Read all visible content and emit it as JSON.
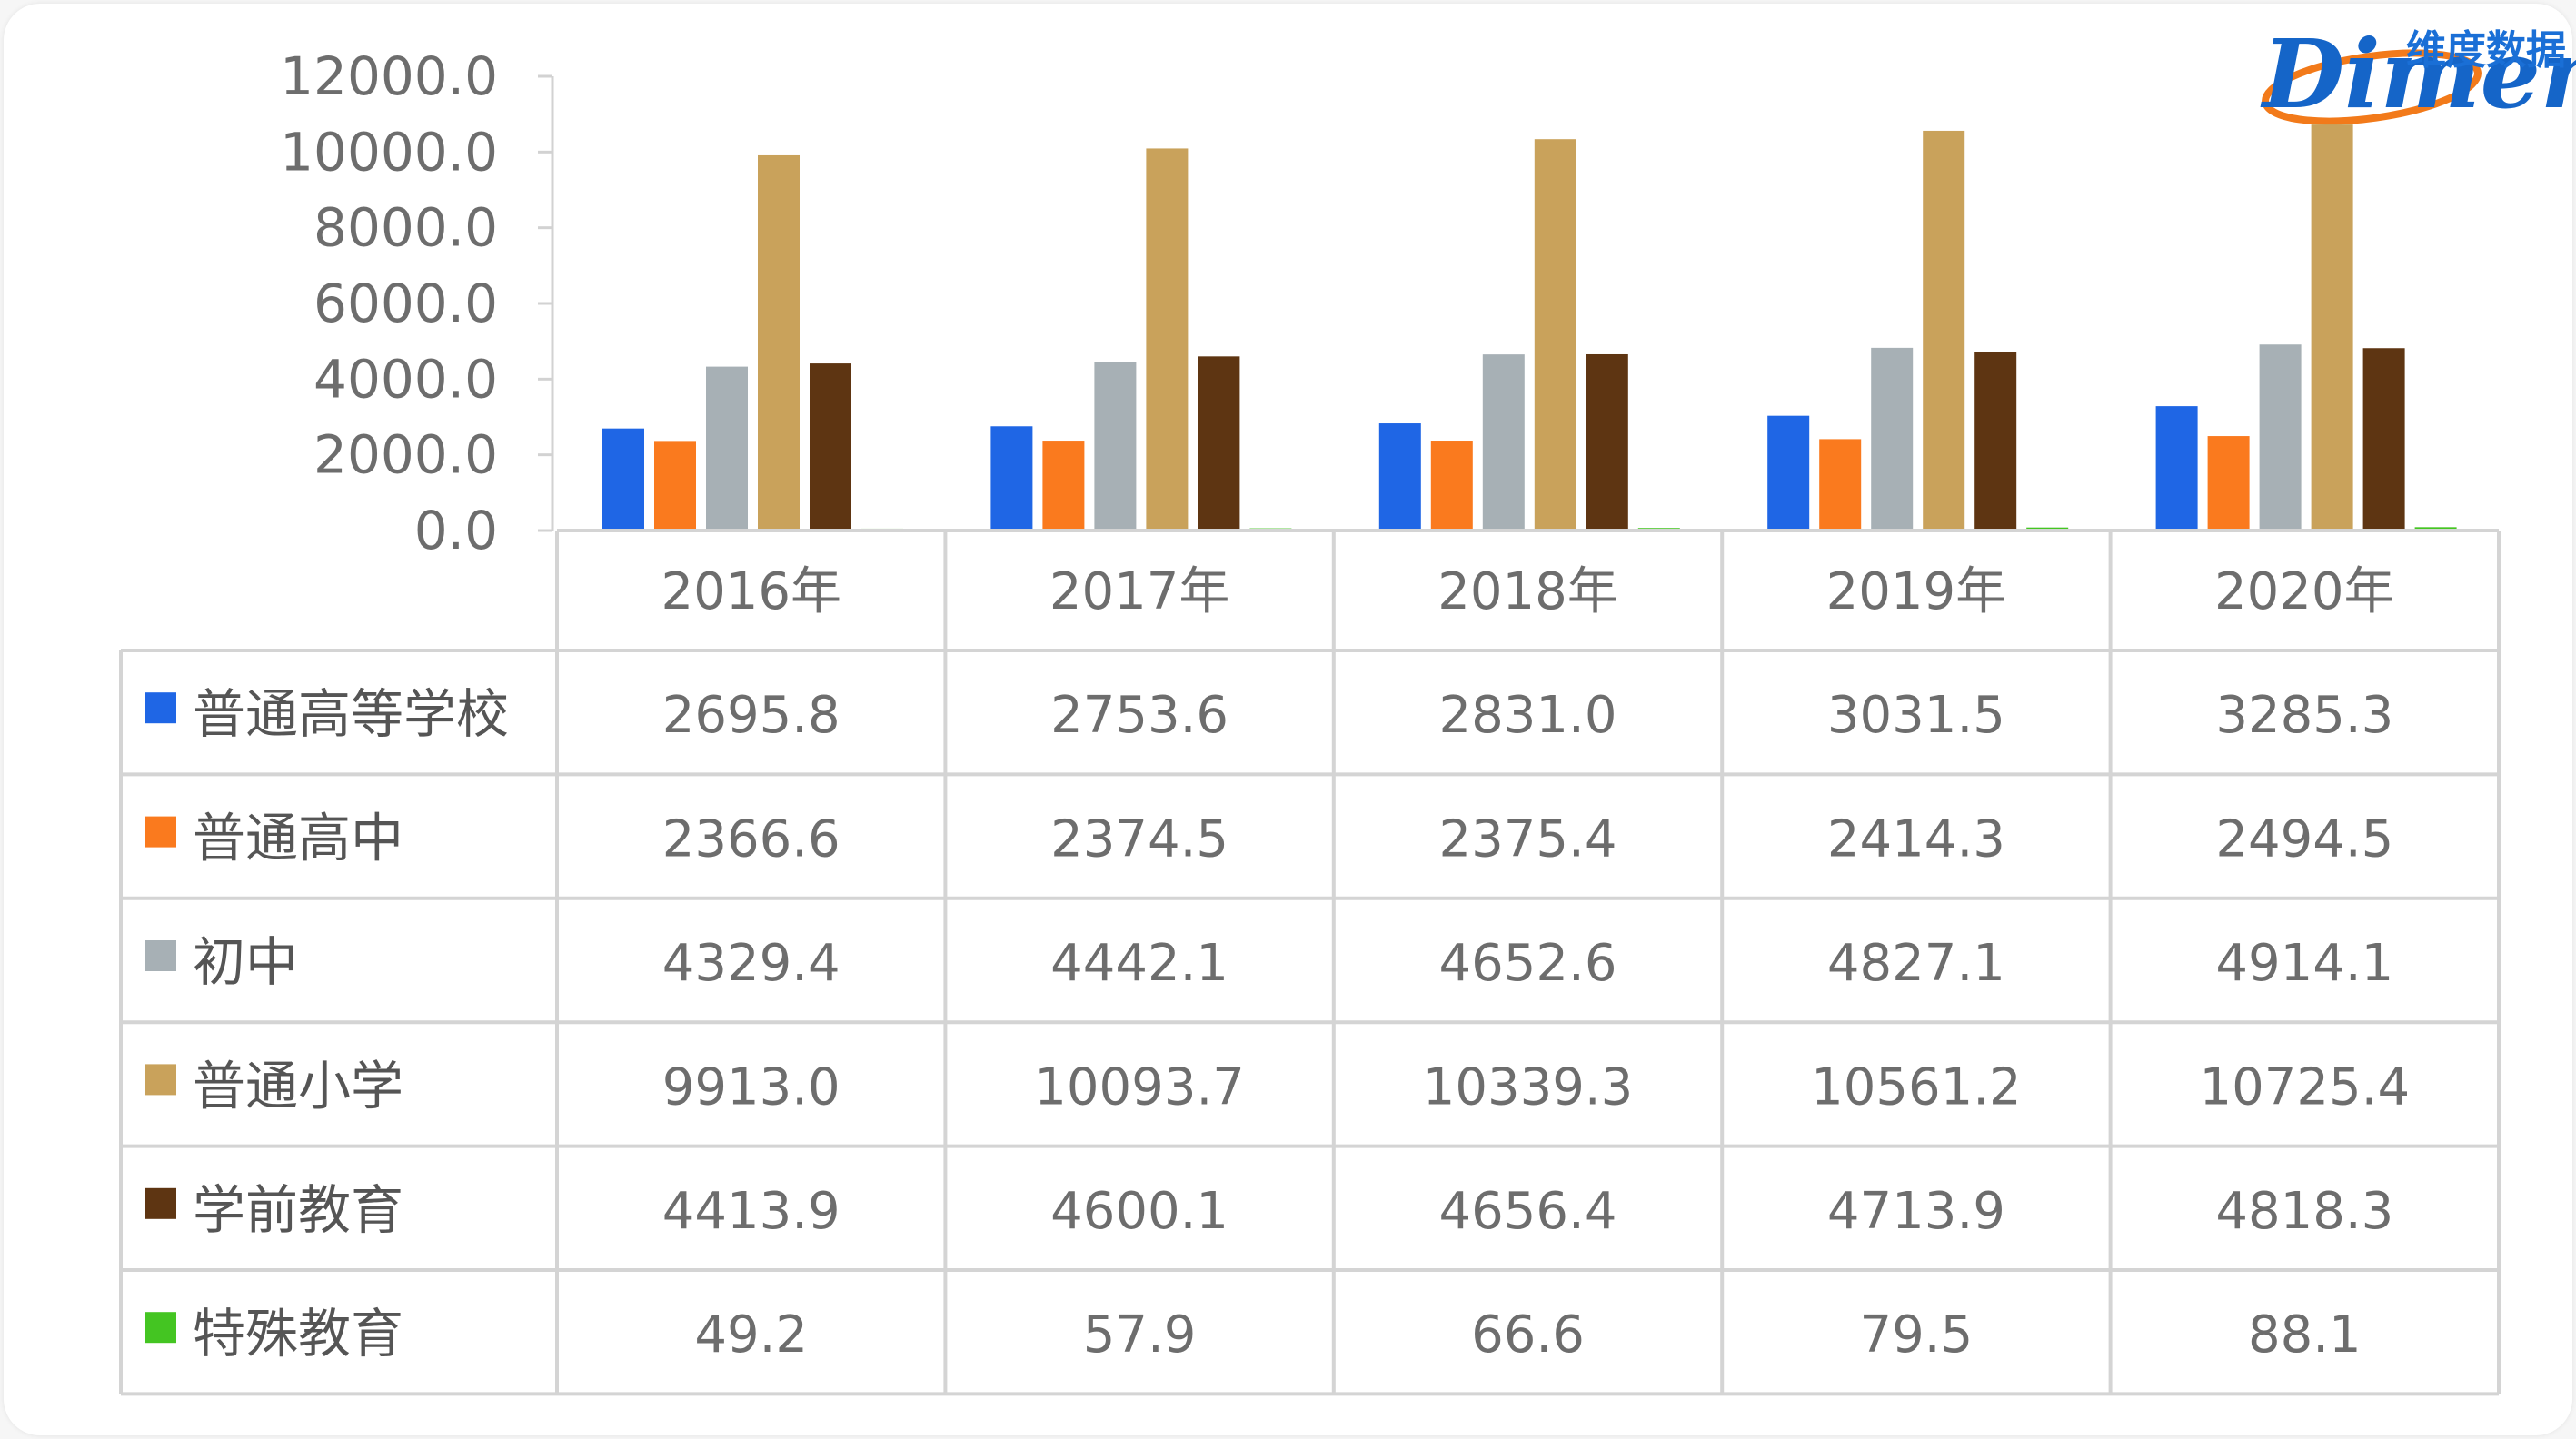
{
  "logo": {
    "cn": "维度数据",
    "en": "Dimeno"
  },
  "chart_data": {
    "type": "bar",
    "categories": [
      "2016年",
      "2017年",
      "2018年",
      "2019年",
      "2020年"
    ],
    "ylim": [
      0,
      12000
    ],
    "yticks": [
      "12000.0",
      "10000.0",
      "8000.0",
      "6000.0",
      "4000.0",
      "2000.0",
      "0.0"
    ],
    "grid": false,
    "legend": "data table below chart",
    "series": [
      {
        "name": "普通高等学校",
        "color": "#1f66e5",
        "values": [
          2695.8,
          2753.6,
          2831.0,
          3031.5,
          3285.3
        ],
        "labels": [
          "2695.8",
          "2753.6",
          "2831.0",
          "3031.5",
          "3285.3"
        ]
      },
      {
        "name": "普通高中",
        "color": "#fa7a1e",
        "values": [
          2366.6,
          2374.5,
          2375.4,
          2414.3,
          2494.5
        ],
        "labels": [
          "2366.6",
          "2374.5",
          "2375.4",
          "2414.3",
          "2494.5"
        ]
      },
      {
        "name": "初中",
        "color": "#a7b0b5",
        "values": [
          4329.4,
          4442.1,
          4652.6,
          4827.1,
          4914.1
        ],
        "labels": [
          "4329.4",
          "4442.1",
          "4652.6",
          "4827.1",
          "4914.1"
        ]
      },
      {
        "name": "普通小学",
        "color": "#c9a25b",
        "values": [
          9913.0,
          10093.7,
          10339.3,
          10561.2,
          10725.4
        ],
        "labels": [
          "9913.0",
          "10093.7",
          "10339.3",
          "10561.2",
          "10725.4"
        ]
      },
      {
        "name": "学前教育",
        "color": "#5e3512",
        "values": [
          4413.9,
          4600.1,
          4656.4,
          4713.9,
          4818.3
        ],
        "labels": [
          "4413.9",
          "4600.1",
          "4656.4",
          "4713.9",
          "4818.3"
        ]
      },
      {
        "name": "特殊教育",
        "color": "#44c522",
        "values": [
          49.2,
          57.9,
          66.6,
          79.5,
          88.1
        ],
        "labels": [
          "49.2",
          "57.9",
          "66.6",
          "79.5",
          "88.1"
        ]
      }
    ]
  }
}
